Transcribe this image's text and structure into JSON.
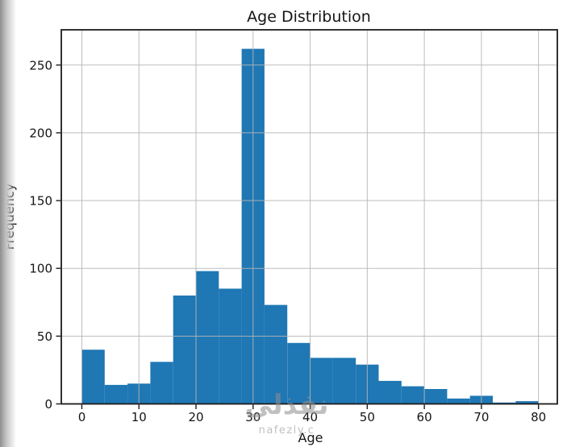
{
  "watermark": {
    "arabic": "نفذلي",
    "latin": "nafezly.c"
  },
  "chart_data": {
    "type": "bar",
    "chart_kind": "histogram",
    "title": "Age Distribution",
    "xlabel": "Age",
    "ylabel": "Frequency",
    "bin_edges": [
      0,
      4,
      8,
      12,
      16,
      20,
      24,
      28,
      32,
      36,
      40,
      44,
      48,
      52,
      56,
      60,
      64,
      68,
      72,
      76,
      80
    ],
    "values": [
      40,
      14,
      15,
      31,
      80,
      98,
      85,
      262,
      73,
      45,
      34,
      34,
      29,
      17,
      13,
      11,
      4,
      6,
      1,
      2
    ],
    "x_ticks": [
      0,
      10,
      20,
      30,
      40,
      50,
      60,
      70,
      80
    ],
    "y_ticks": [
      0,
      50,
      100,
      150,
      200,
      250
    ],
    "xlim": [
      -3.6,
      83.3
    ],
    "ylim": [
      0,
      276
    ],
    "grid": true,
    "grid_in_front_of_bars": true,
    "legend": false,
    "bar_color": "#1f77b4",
    "grid_color": "#b6b6b6",
    "frame_color": "#1c1c1c",
    "text_color": "#151515"
  }
}
